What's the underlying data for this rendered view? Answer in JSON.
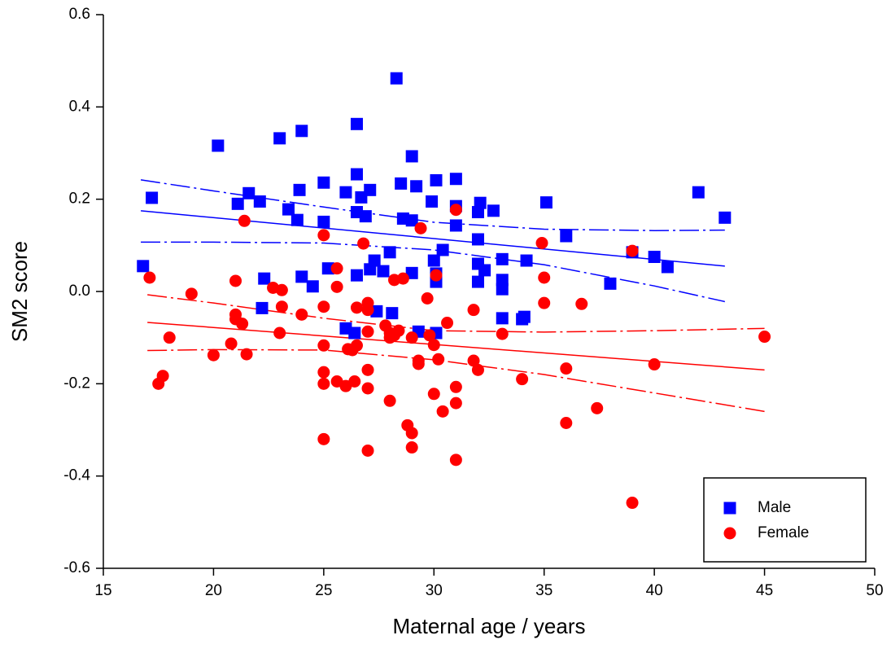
{
  "chart_data": {
    "type": "scatter",
    "xlabel": "Maternal age / years",
    "ylabel": "SM2 score",
    "xlim": [
      15,
      50
    ],
    "ylim": [
      -0.6,
      0.6
    ],
    "xticks": [
      15,
      20,
      25,
      30,
      35,
      40,
      45,
      50
    ],
    "yticks": [
      -0.6,
      -0.4,
      -0.2,
      {
        "value": 0,
        "label": "0.0"
      },
      0.2,
      0.4,
      0.6
    ],
    "legend": "lower right",
    "series": [
      {
        "name": "Male",
        "color": "#0000ff",
        "marker": "square",
        "x": [
          16.8,
          17.2,
          20.2,
          21.1,
          21.6,
          22.1,
          22.2,
          22.3,
          23,
          23.4,
          23.8,
          23.9,
          24,
          24,
          24.5,
          25,
          25,
          25.2,
          26,
          26,
          26.4,
          26.5,
          26.5,
          26.5,
          26.5,
          26.7,
          26.9,
          27.1,
          27.1,
          27.3,
          27.4,
          27.7,
          28,
          28.1,
          28.3,
          28.5,
          28.6,
          29,
          29,
          29.2,
          29,
          29.3,
          29.9,
          30.1,
          30,
          30.1,
          30.1,
          30.1,
          30.4,
          31,
          31,
          31,
          32.1,
          32,
          32,
          32,
          32,
          32.3,
          32.7,
          33.1,
          33.1,
          33.1,
          33.1,
          34.1,
          34,
          34.2,
          35.1,
          36,
          38,
          39,
          40,
          40.6,
          42,
          43.2
        ],
        "values": [
          0.055,
          0.203,
          0.316,
          0.19,
          0.213,
          0.195,
          -0.036,
          0.028,
          0.332,
          0.178,
          0.155,
          0.22,
          0.348,
          0.032,
          0.011,
          0.236,
          0.151,
          0.05,
          0.215,
          -0.08,
          -0.09,
          0.035,
          0.172,
          0.363,
          0.254,
          0.204,
          0.163,
          0.22,
          0.048,
          0.067,
          -0.043,
          0.044,
          0.085,
          -0.047,
          0.462,
          0.234,
          0.158,
          0.154,
          0.293,
          0.228,
          0.04,
          -0.087,
          0.195,
          0.241,
          0.067,
          0.021,
          0.039,
          -0.09,
          0.09,
          0.244,
          0.185,
          0.143,
          0.192,
          0.172,
          0.113,
          0.06,
          0.021,
          0.046,
          0.175,
          0.07,
          0.025,
          0.005,
          -0.058,
          -0.055,
          -0.06,
          0.067,
          0.193,
          0.12,
          0.017,
          0.085,
          0.075,
          0.053,
          0.215,
          0.16
        ]
      },
      {
        "name": "Female",
        "color": "#ff0000",
        "marker": "circle",
        "x": [
          17.1,
          17.5,
          17.7,
          18,
          19,
          20,
          20.8,
          21,
          21,
          21,
          21.3,
          21.4,
          21.5,
          22.7,
          23,
          23.1,
          23.1,
          24,
          25,
          25,
          25,
          25,
          25,
          25,
          25.6,
          25.6,
          25.6,
          26,
          26.1,
          26.3,
          26.4,
          26.5,
          26.5,
          26.8,
          27,
          27,
          27,
          27,
          27,
          27,
          27.8,
          28,
          28,
          28,
          28.2,
          28.2,
          28.4,
          28.6,
          28.8,
          29,
          29,
          29,
          29.3,
          29.3,
          29.4,
          29.7,
          29.8,
          30,
          30,
          30.1,
          30.2,
          30.4,
          30.6,
          31,
          31,
          31,
          31,
          31.8,
          31.8,
          32,
          33.1,
          34,
          34.9,
          35,
          35,
          36,
          36,
          36.7,
          37.4,
          39,
          39,
          40,
          45
        ],
        "values": [
          0.03,
          -0.2,
          -0.183,
          -0.1,
          -0.005,
          -0.138,
          -0.113,
          0.023,
          -0.05,
          -0.06,
          -0.07,
          0.153,
          -0.136,
          0.008,
          -0.09,
          -0.033,
          0.003,
          -0.05,
          0.122,
          -0.033,
          -0.117,
          -0.175,
          -0.2,
          -0.32,
          0.05,
          0.01,
          -0.195,
          -0.205,
          -0.125,
          -0.127,
          -0.195,
          -0.035,
          -0.117,
          0.104,
          -0.025,
          -0.04,
          -0.087,
          -0.17,
          -0.21,
          -0.345,
          -0.074,
          -0.1,
          -0.09,
          -0.237,
          0.025,
          -0.095,
          -0.085,
          0.028,
          -0.29,
          -0.1,
          -0.307,
          -0.338,
          -0.15,
          -0.157,
          0.137,
          -0.015,
          -0.095,
          -0.116,
          -0.222,
          0.035,
          -0.147,
          -0.26,
          -0.068,
          0.177,
          -0.207,
          -0.242,
          -0.365,
          -0.04,
          -0.15,
          -0.17,
          -0.092,
          -0.19,
          0.105,
          0.03,
          -0.025,
          -0.167,
          -0.285,
          -0.027,
          -0.253,
          0.088,
          -0.458,
          -0.158,
          -0.098
        ]
      }
    ],
    "fits": [
      {
        "color": "#0000ff",
        "dashed": false,
        "x": [
          16.7,
          43.2
        ],
        "values": [
          0.175,
          0.055
        ]
      },
      {
        "color": "#0000ff",
        "dashed": true,
        "x": [
          16.7,
          20,
          25,
          30,
          35,
          40,
          43.2
        ],
        "values": [
          0.242,
          0.218,
          0.183,
          0.15,
          0.135,
          0.132,
          0.133
        ]
      },
      {
        "color": "#0000ff",
        "dashed": true,
        "x": [
          16.7,
          20,
          25,
          30,
          35,
          40,
          43.2
        ],
        "values": [
          0.107,
          0.107,
          0.105,
          0.09,
          0.058,
          0.012,
          -0.022
        ]
      },
      {
        "color": "#ff0000",
        "dashed": false,
        "x": [
          17,
          45
        ],
        "values": [
          -0.067,
          -0.17
        ]
      },
      {
        "color": "#ff0000",
        "dashed": true,
        "x": [
          17,
          20,
          25,
          30,
          35,
          40,
          45
        ],
        "values": [
          -0.007,
          -0.025,
          -0.058,
          -0.085,
          -0.088,
          -0.085,
          -0.08
        ]
      },
      {
        "color": "#ff0000",
        "dashed": true,
        "x": [
          17,
          20,
          25,
          30,
          35,
          40,
          45
        ],
        "values": [
          -0.128,
          -0.126,
          -0.127,
          -0.148,
          -0.18,
          -0.22,
          -0.26
        ]
      }
    ]
  }
}
